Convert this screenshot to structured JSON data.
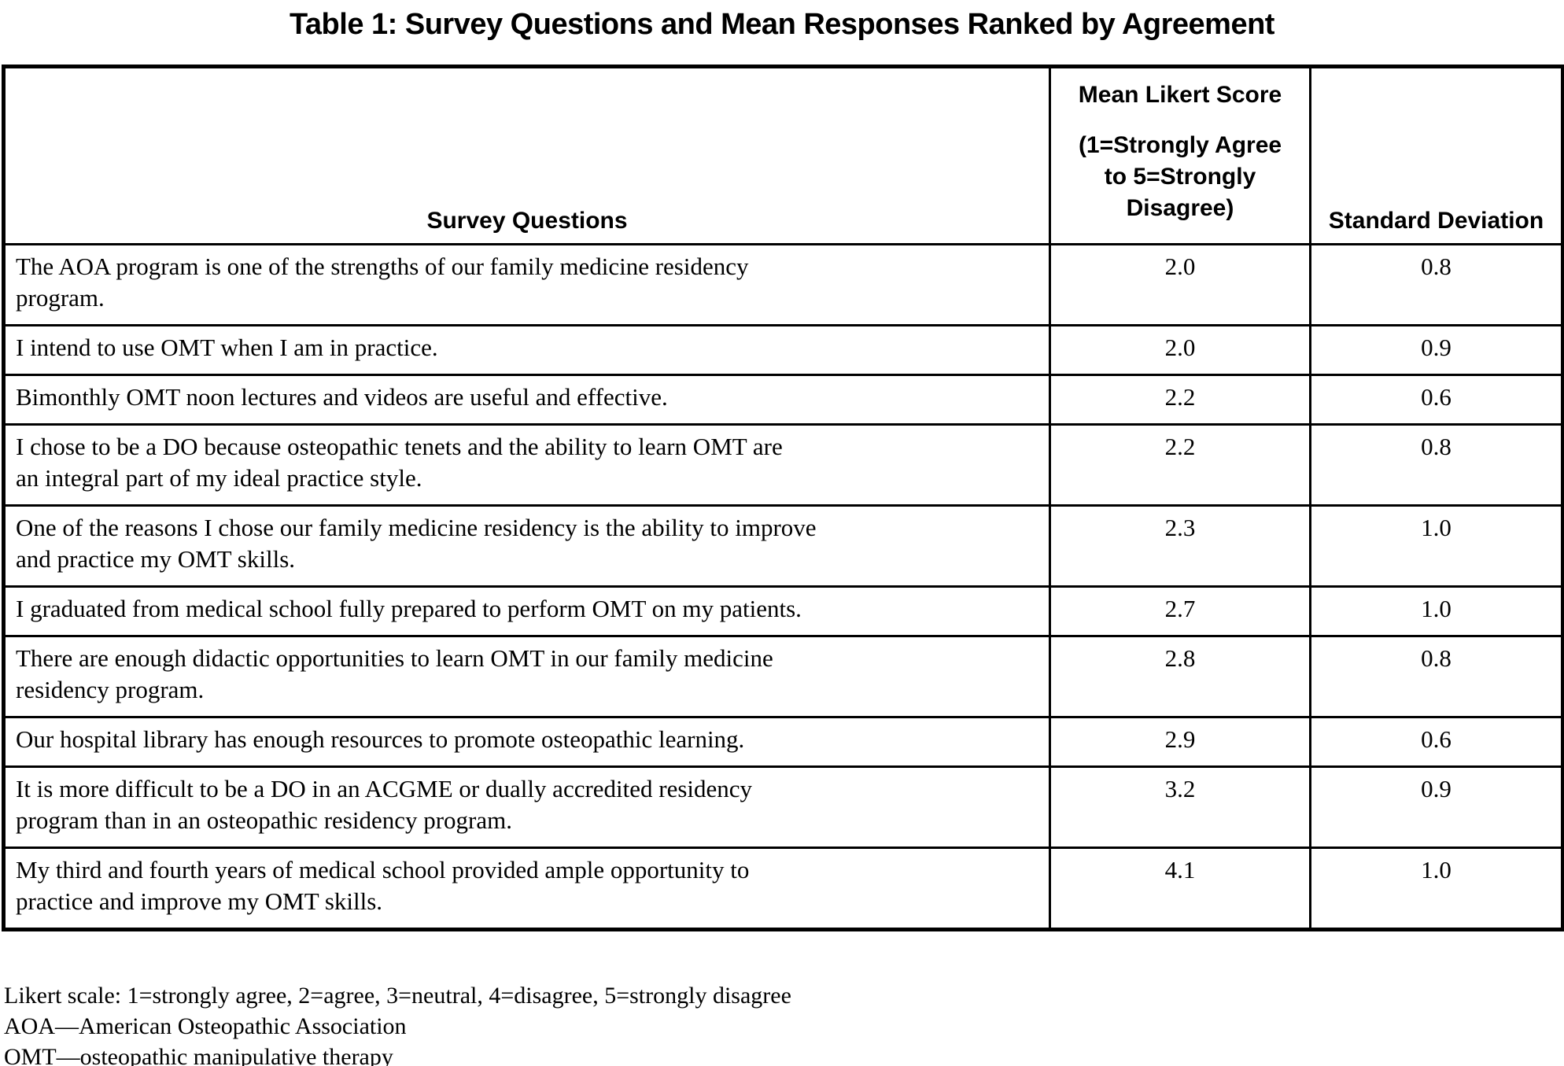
{
  "title": "Table 1: Survey Questions and Mean Responses Ranked by Agreement",
  "table": {
    "columns": {
      "questions": "Survey Questions",
      "likert_line1": "Mean Likert Score",
      "likert_line2": "(1=Strongly Agree\nto 5=Strongly\nDisagree)",
      "sd": "Standard Deviation"
    },
    "rows": [
      {
        "question": "The AOA program is one of the strengths of our family medicine residency\nprogram.",
        "mean": "2.0",
        "sd": "0.8"
      },
      {
        "question": "I intend to use OMT when I am in practice.",
        "mean": "2.0",
        "sd": "0.9"
      },
      {
        "question": "Bimonthly OMT noon lectures and videos are useful and effective.",
        "mean": "2.2",
        "sd": "0.6"
      },
      {
        "question": "I chose to be a DO because osteopathic tenets and the ability to learn OMT are\nan integral part of my ideal practice style.",
        "mean": "2.2",
        "sd": "0.8"
      },
      {
        "question": "One of the reasons I chose our family medicine residency is the ability to improve\nand practice my OMT skills.",
        "mean": "2.3",
        "sd": "1.0"
      },
      {
        "question": "I graduated from medical school fully prepared to perform OMT on my patients.",
        "mean": "2.7",
        "sd": "1.0"
      },
      {
        "question": "There are enough didactic opportunities to learn OMT in our family medicine\nresidency program.",
        "mean": "2.8",
        "sd": "0.8"
      },
      {
        "question": "Our hospital library has enough resources to promote osteopathic learning.",
        "mean": "2.9",
        "sd": "0.6"
      },
      {
        "question": "It is more difficult to be a DO in an ACGME or dually accredited residency\nprogram than in an osteopathic residency program.",
        "mean": "3.2",
        "sd": "0.9"
      },
      {
        "question": "My third and fourth years of medical school provided ample opportunity to\npractice and improve my OMT skills.",
        "mean": "4.1",
        "sd": "1.0"
      }
    ]
  },
  "footnotes": {
    "likert": "Likert scale: 1=strongly agree, 2=agree, 3=neutral, 4=disagree, 5=strongly disagree",
    "aoa": "AOA—American Osteopathic Association",
    "omt": "OMT—osteopathic manipulative therapy"
  }
}
